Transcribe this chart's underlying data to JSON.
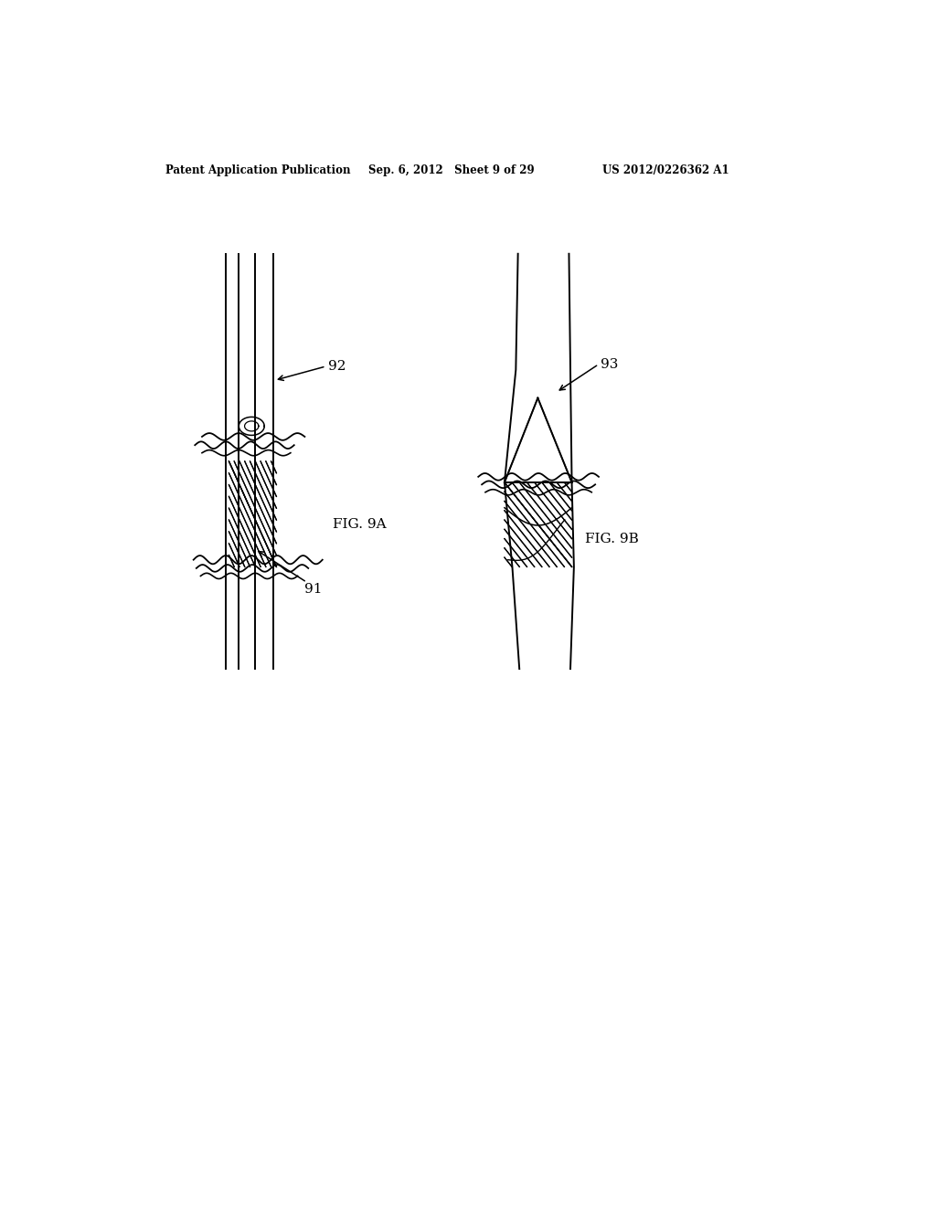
{
  "bg_color": "#ffffff",
  "header_left": "Patent Application Publication",
  "header_center": "Sep. 6, 2012   Sheet 9 of 29",
  "header_right": "US 2012/0226362 A1",
  "fig9a_label": "FIG. 9A",
  "fig9b_label": "FIG. 9B",
  "label_91": "91",
  "label_92": "92",
  "label_93": "93"
}
